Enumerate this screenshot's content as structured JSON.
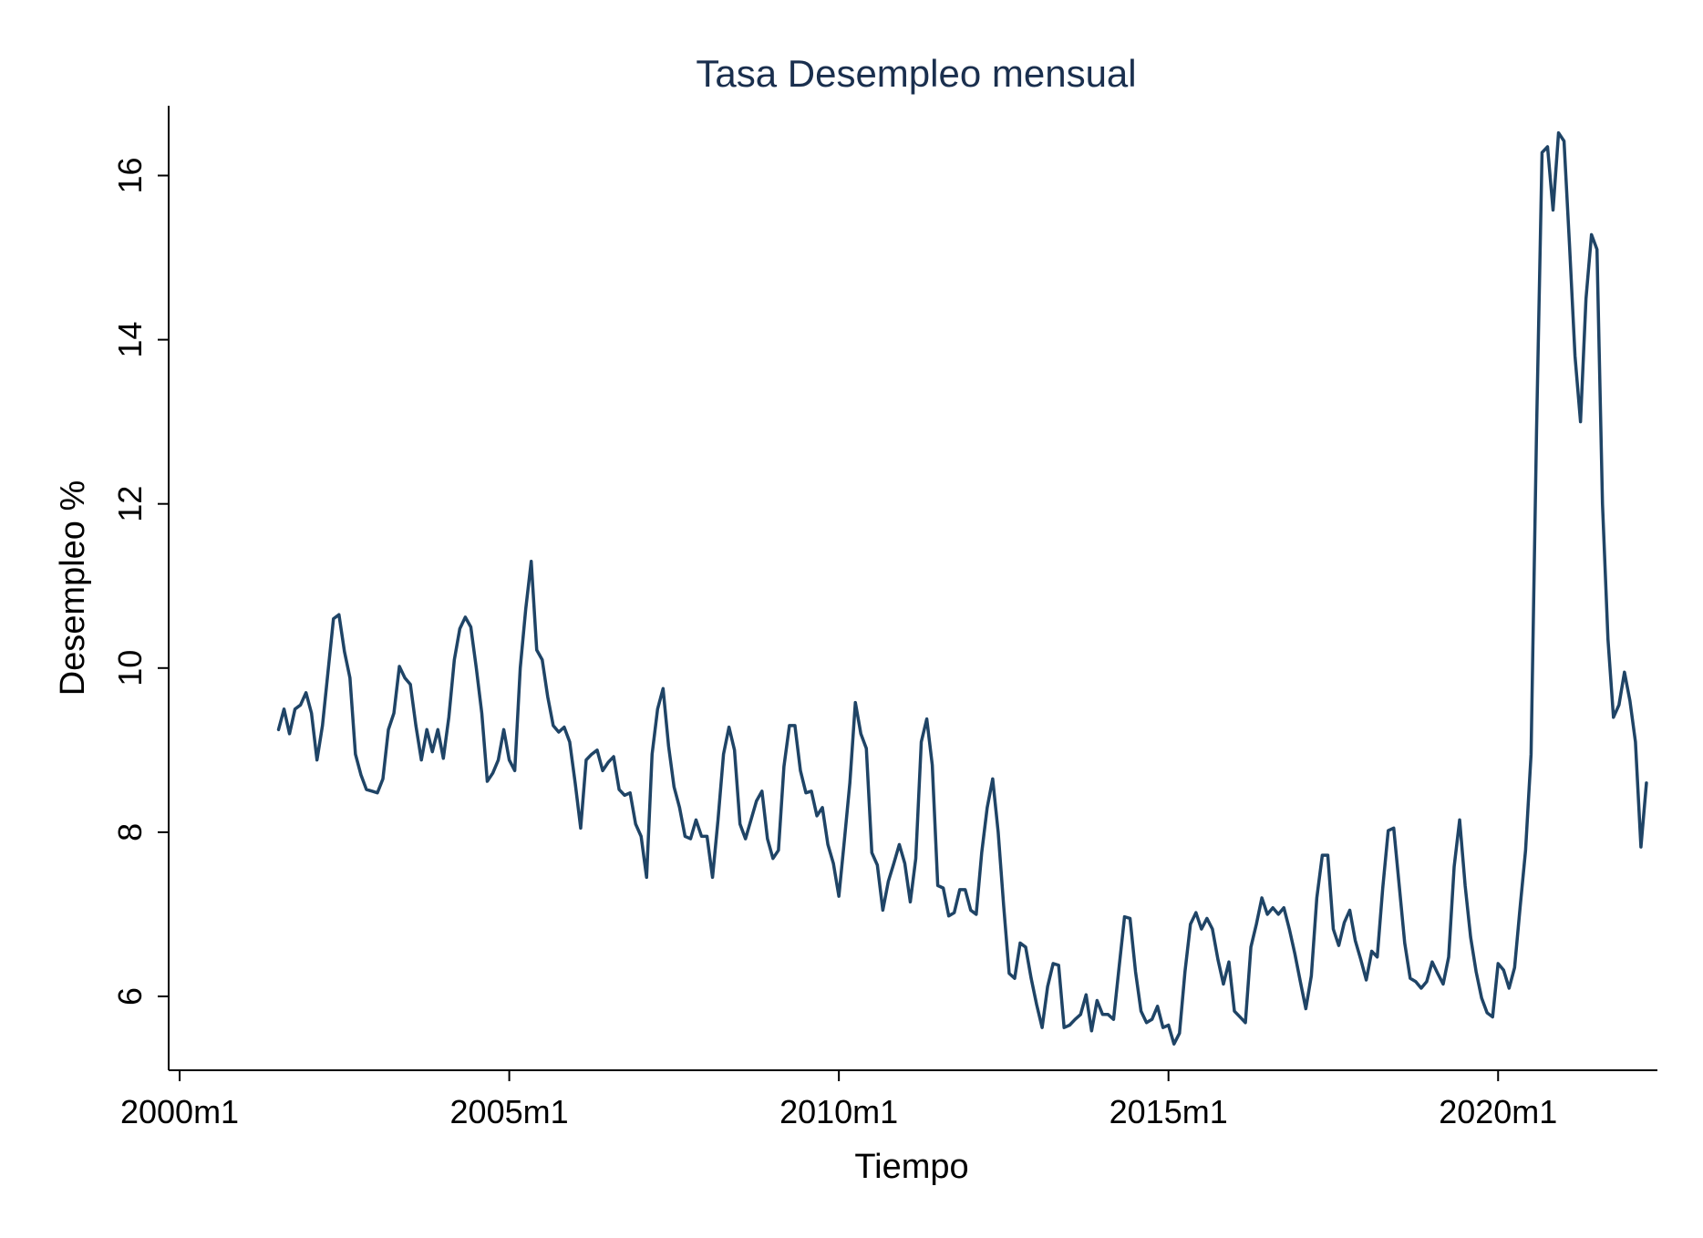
{
  "chart_data": {
    "type": "line",
    "title": "Tasa Desempleo mensual",
    "xlabel": "Tiempo",
    "ylabel": "Desempleo %",
    "x_start": "2001m7",
    "x_frequency": "monthly",
    "xlim": [
      "1999m11",
      "2022m6"
    ],
    "ylim": [
      5.1,
      16.85
    ],
    "x_ticks": [
      "2000m1",
      "2005m1",
      "2010m1",
      "2015m1",
      "2020m1"
    ],
    "y_ticks": [
      6,
      8,
      10,
      12,
      14,
      16
    ],
    "grid": false,
    "legend": "none",
    "colors": {
      "line": "#1f4466",
      "title": "#1a2f4e",
      "axis": "#000000",
      "background": "#ffffff"
    },
    "series": [
      {
        "values": [
          9.25,
          9.5,
          9.2,
          9.5,
          9.55,
          9.7,
          9.45,
          8.88,
          9.3,
          9.95,
          10.6,
          10.65,
          10.2,
          9.88,
          8.95,
          8.7,
          8.52,
          8.5,
          8.48,
          8.65,
          9.25,
          9.45,
          10.02,
          9.88,
          9.8,
          9.3,
          8.88,
          9.25,
          8.98,
          9.25,
          8.9,
          9.4,
          10.1,
          10.48,
          10.62,
          10.5,
          10.0,
          9.45,
          8.62,
          8.72,
          8.88,
          9.25,
          8.88,
          8.75,
          10.0,
          10.72,
          11.3,
          10.22,
          10.1,
          9.65,
          9.3,
          9.22,
          9.28,
          9.1,
          8.6,
          8.05,
          8.88,
          8.95,
          9.0,
          8.75,
          8.85,
          8.92,
          8.52,
          8.45,
          8.48,
          8.1,
          7.95,
          7.45,
          8.95,
          9.5,
          9.75,
          9.05,
          8.55,
          8.3,
          7.95,
          7.92,
          8.15,
          7.95,
          7.95,
          7.45,
          8.15,
          8.95,
          9.28,
          9.0,
          8.1,
          7.92,
          8.15,
          8.38,
          8.5,
          7.92,
          7.68,
          7.78,
          8.8,
          9.3,
          9.3,
          8.75,
          8.48,
          8.5,
          8.2,
          8.3,
          7.85,
          7.62,
          7.22,
          7.9,
          8.6,
          9.58,
          9.2,
          9.02,
          7.75,
          7.6,
          7.05,
          7.4,
          7.62,
          7.85,
          7.62,
          7.15,
          7.68,
          9.1,
          9.38,
          8.82,
          7.35,
          7.32,
          6.98,
          7.02,
          7.3,
          7.3,
          7.05,
          7.0,
          7.75,
          8.3,
          8.65,
          8.0,
          7.1,
          6.28,
          6.22,
          6.65,
          6.6,
          6.22,
          5.9,
          5.62,
          6.12,
          6.4,
          6.38,
          5.62,
          5.65,
          5.72,
          5.78,
          6.02,
          5.58,
          5.95,
          5.78,
          5.78,
          5.72,
          6.35,
          6.97,
          6.95,
          6.3,
          5.82,
          5.68,
          5.72,
          5.88,
          5.62,
          5.65,
          5.42,
          5.55,
          6.3,
          6.88,
          7.02,
          6.82,
          6.95,
          6.82,
          6.45,
          6.15,
          6.42,
          5.82,
          5.75,
          5.68,
          6.6,
          6.88,
          7.2,
          7.0,
          7.08,
          7.0,
          7.08,
          6.82,
          6.52,
          6.18,
          5.85,
          6.25,
          7.2,
          7.72,
          7.72,
          6.82,
          6.62,
          6.9,
          7.05,
          6.68,
          6.45,
          6.2,
          6.55,
          6.48,
          7.32,
          8.02,
          8.05,
          7.35,
          6.65,
          6.22,
          6.18,
          6.1,
          6.18,
          6.42,
          6.28,
          6.15,
          6.48,
          7.58,
          8.15,
          7.35,
          6.72,
          6.3,
          5.98,
          5.8,
          5.75,
          6.4,
          6.32,
          6.1,
          6.35,
          7.08,
          7.78,
          8.95,
          12.9,
          16.28,
          16.35,
          15.58,
          16.52,
          16.42,
          15.15,
          13.8,
          13.0,
          14.5,
          15.28,
          15.1,
          12.0,
          10.35,
          9.4,
          9.55,
          9.95,
          9.6,
          9.1,
          7.82,
          8.6
        ]
      }
    ]
  }
}
